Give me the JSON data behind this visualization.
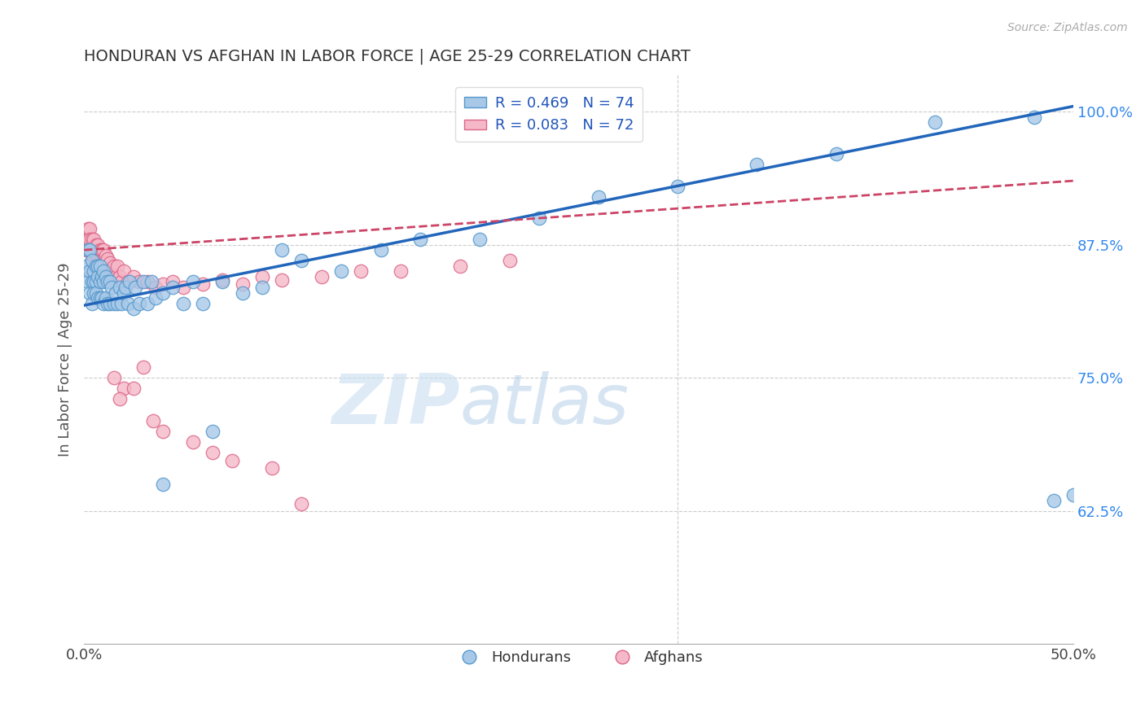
{
  "title": "HONDURAN VS AFGHAN IN LABOR FORCE | AGE 25-29 CORRELATION CHART",
  "source": "Source: ZipAtlas.com",
  "ylabel": "In Labor Force | Age 25-29",
  "xlim": [
    0.0,
    0.5
  ],
  "ylim": [
    0.5,
    1.035
  ],
  "xticks": [
    0.0,
    0.1,
    0.2,
    0.3,
    0.4,
    0.5
  ],
  "xticklabels": [
    "0.0%",
    "",
    "",
    "",
    "",
    "50.0%"
  ],
  "yticks": [
    0.625,
    0.75,
    0.875,
    1.0
  ],
  "yticklabels": [
    "62.5%",
    "75.0%",
    "87.5%",
    "100.0%"
  ],
  "blue_color": "#a8c8e8",
  "pink_color": "#f4b8c8",
  "blue_edge": "#5599cc",
  "pink_edge": "#dd6688",
  "blue_line_color": "#2266bb",
  "pink_line_color": "#cc4466",
  "legend_blue_label": "R = 0.469   N = 74",
  "legend_pink_label": "R = 0.083   N = 72",
  "hondurans_label": "Hondurans",
  "afghans_label": "Afghans",
  "watermark_zip": "ZIP",
  "watermark_atlas": "atlas",
  "blue_trend_x0": 0.0,
  "blue_trend_y0": 0.818,
  "blue_trend_x1": 0.5,
  "blue_trend_y1": 1.005,
  "pink_trend_x0": 0.0,
  "pink_trend_y0": 0.87,
  "pink_trend_x1": 0.5,
  "pink_trend_y1": 0.935,
  "blue_scatter_x": [
    0.001,
    0.002,
    0.002,
    0.003,
    0.003,
    0.003,
    0.004,
    0.004,
    0.004,
    0.005,
    0.005,
    0.005,
    0.006,
    0.006,
    0.006,
    0.007,
    0.007,
    0.007,
    0.008,
    0.008,
    0.008,
    0.009,
    0.009,
    0.01,
    0.01,
    0.01,
    0.011,
    0.011,
    0.012,
    0.012,
    0.013,
    0.013,
    0.014,
    0.015,
    0.016,
    0.017,
    0.018,
    0.019,
    0.02,
    0.021,
    0.022,
    0.023,
    0.025,
    0.026,
    0.028,
    0.03,
    0.032,
    0.034,
    0.036,
    0.04,
    0.045,
    0.05,
    0.055,
    0.06,
    0.07,
    0.08,
    0.09,
    0.1,
    0.11,
    0.13,
    0.15,
    0.17,
    0.2,
    0.23,
    0.26,
    0.3,
    0.34,
    0.38,
    0.43,
    0.48,
    0.49,
    0.5,
    0.04,
    0.065
  ],
  "blue_scatter_y": [
    0.855,
    0.87,
    0.84,
    0.87,
    0.85,
    0.83,
    0.86,
    0.84,
    0.82,
    0.85,
    0.84,
    0.83,
    0.855,
    0.84,
    0.83,
    0.855,
    0.845,
    0.825,
    0.855,
    0.84,
    0.825,
    0.845,
    0.825,
    0.85,
    0.84,
    0.82,
    0.845,
    0.825,
    0.84,
    0.82,
    0.84,
    0.82,
    0.835,
    0.82,
    0.83,
    0.82,
    0.835,
    0.82,
    0.83,
    0.835,
    0.82,
    0.84,
    0.815,
    0.835,
    0.82,
    0.84,
    0.82,
    0.84,
    0.825,
    0.83,
    0.835,
    0.82,
    0.84,
    0.82,
    0.84,
    0.83,
    0.835,
    0.87,
    0.86,
    0.85,
    0.87,
    0.88,
    0.88,
    0.9,
    0.92,
    0.93,
    0.95,
    0.96,
    0.99,
    0.995,
    0.635,
    0.64,
    0.65,
    0.7
  ],
  "pink_scatter_x": [
    0.001,
    0.001,
    0.002,
    0.002,
    0.003,
    0.003,
    0.003,
    0.004,
    0.004,
    0.004,
    0.004,
    0.005,
    0.005,
    0.005,
    0.005,
    0.006,
    0.006,
    0.006,
    0.007,
    0.007,
    0.007,
    0.008,
    0.008,
    0.008,
    0.009,
    0.009,
    0.009,
    0.01,
    0.01,
    0.01,
    0.011,
    0.011,
    0.012,
    0.012,
    0.013,
    0.014,
    0.015,
    0.016,
    0.017,
    0.018,
    0.019,
    0.02,
    0.022,
    0.025,
    0.028,
    0.032,
    0.036,
    0.04,
    0.045,
    0.05,
    0.06,
    0.07,
    0.08,
    0.09,
    0.1,
    0.12,
    0.14,
    0.16,
    0.19,
    0.215,
    0.03,
    0.015,
    0.02,
    0.025,
    0.018,
    0.035,
    0.04,
    0.055,
    0.065,
    0.075,
    0.095,
    0.11
  ],
  "pink_scatter_y": [
    0.88,
    0.87,
    0.89,
    0.88,
    0.89,
    0.88,
    0.87,
    0.88,
    0.87,
    0.86,
    0.85,
    0.88,
    0.87,
    0.86,
    0.85,
    0.875,
    0.865,
    0.855,
    0.875,
    0.865,
    0.855,
    0.87,
    0.86,
    0.85,
    0.87,
    0.855,
    0.845,
    0.87,
    0.858,
    0.845,
    0.865,
    0.85,
    0.862,
    0.848,
    0.858,
    0.848,
    0.855,
    0.845,
    0.855,
    0.845,
    0.84,
    0.85,
    0.84,
    0.845,
    0.84,
    0.84,
    0.835,
    0.838,
    0.84,
    0.835,
    0.838,
    0.842,
    0.838,
    0.845,
    0.842,
    0.845,
    0.85,
    0.85,
    0.855,
    0.86,
    0.76,
    0.75,
    0.74,
    0.74,
    0.73,
    0.71,
    0.7,
    0.69,
    0.68,
    0.672,
    0.665,
    0.632
  ]
}
